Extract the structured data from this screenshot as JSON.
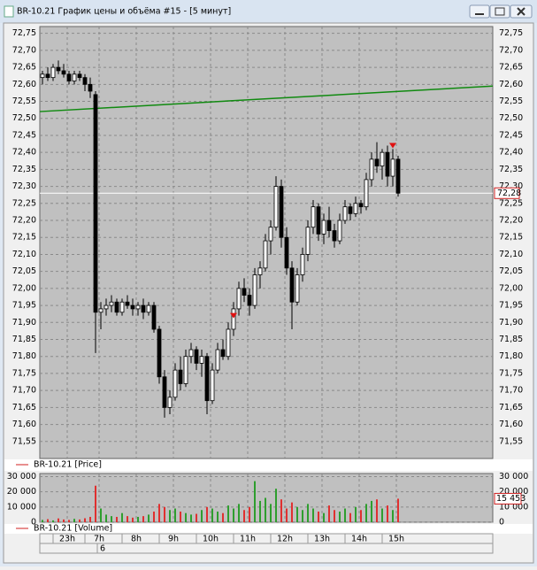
{
  "window": {
    "title": "BR-10.21 График цены и объёма #15 - [5 минут]"
  },
  "chart_data": [
    {
      "type": "candlestick",
      "legend": "BR-10.21 [Price]",
      "open": [
        72.62,
        72.63,
        72.62,
        72.65,
        72.64,
        72.63,
        72.61,
        72.63,
        72.62,
        72.6,
        72.57,
        71.93,
        71.94,
        71.95,
        71.96,
        71.93,
        71.96,
        71.95,
        71.94,
        71.95,
        71.93,
        71.95,
        71.88,
        71.74,
        71.65,
        71.68,
        71.76,
        71.72,
        71.8,
        71.82,
        71.78,
        71.8,
        71.67,
        71.76,
        71.82,
        71.8,
        71.88,
        71.94,
        72.0,
        71.98,
        71.95,
        72.04,
        72.06,
        72.14,
        72.18,
        72.3,
        72.15,
        72.06,
        71.96,
        72.04,
        72.1,
        72.18,
        72.24,
        72.16,
        72.2,
        72.17,
        72.14,
        72.2,
        72.24,
        72.22,
        72.25,
        72.24,
        72.32,
        72.38,
        72.36,
        72.4,
        72.33,
        72.38
      ],
      "high": [
        72.64,
        72.65,
        72.66,
        72.67,
        72.66,
        72.64,
        72.64,
        72.64,
        72.63,
        72.62,
        72.58,
        71.96,
        71.97,
        71.98,
        71.97,
        71.97,
        71.98,
        71.97,
        71.96,
        71.97,
        71.96,
        71.96,
        71.89,
        71.76,
        71.7,
        71.78,
        71.8,
        71.82,
        71.84,
        71.83,
        71.82,
        71.81,
        71.78,
        71.84,
        71.85,
        71.9,
        71.96,
        72.02,
        72.03,
        72.0,
        72.06,
        72.08,
        72.16,
        72.2,
        72.33,
        72.32,
        72.18,
        72.08,
        72.06,
        72.12,
        72.2,
        72.26,
        72.25,
        72.22,
        72.24,
        72.19,
        72.22,
        72.26,
        72.25,
        72.27,
        72.26,
        72.34,
        72.4,
        72.43,
        72.41,
        72.42,
        72.41,
        72.39
      ],
      "low": [
        72.6,
        72.61,
        72.61,
        72.63,
        72.62,
        72.6,
        72.6,
        72.61,
        72.58,
        72.56,
        71.81,
        71.88,
        71.92,
        71.93,
        71.92,
        71.92,
        71.94,
        71.92,
        71.92,
        71.91,
        71.92,
        71.87,
        71.72,
        71.62,
        71.63,
        71.67,
        71.7,
        71.71,
        71.78,
        71.76,
        71.74,
        71.63,
        71.66,
        71.75,
        71.79,
        71.79,
        71.86,
        71.92,
        71.96,
        71.92,
        71.94,
        72.0,
        72.05,
        72.1,
        72.17,
        72.12,
        72.04,
        71.88,
        71.95,
        72.02,
        72.08,
        72.16,
        72.14,
        72.13,
        72.15,
        72.12,
        72.13,
        72.19,
        72.2,
        72.21,
        72.22,
        72.23,
        72.3,
        72.34,
        72.32,
        72.3,
        72.3,
        72.27
      ],
      "close": [
        72.63,
        72.62,
        72.65,
        72.64,
        72.63,
        72.61,
        72.63,
        72.62,
        72.6,
        72.58,
        71.93,
        71.94,
        71.95,
        71.96,
        71.93,
        71.96,
        71.95,
        71.94,
        71.95,
        71.93,
        71.95,
        71.88,
        71.74,
        71.65,
        71.68,
        71.76,
        71.72,
        71.8,
        71.82,
        71.78,
        71.8,
        71.67,
        71.76,
        71.82,
        71.8,
        71.88,
        71.94,
        72.0,
        71.98,
        71.95,
        72.04,
        72.06,
        72.14,
        72.18,
        72.3,
        72.15,
        72.06,
        71.96,
        72.04,
        72.1,
        72.18,
        72.24,
        72.16,
        72.2,
        72.17,
        72.14,
        72.2,
        72.24,
        72.22,
        72.25,
        72.24,
        72.32,
        72.38,
        72.36,
        72.4,
        72.33,
        72.38,
        72.28
      ],
      "ylim": [
        71.5,
        72.77
      ],
      "yticks": [
        {
          "value": 71.55,
          "label": "71,55"
        },
        {
          "value": 71.6,
          "label": "71,60"
        },
        {
          "value": 71.65,
          "label": "71,65"
        },
        {
          "value": 71.7,
          "label": "71,70"
        },
        {
          "value": 71.75,
          "label": "71,75"
        },
        {
          "value": 71.8,
          "label": "71,80"
        },
        {
          "value": 71.85,
          "label": "71,85"
        },
        {
          "value": 71.9,
          "label": "71,90"
        },
        {
          "value": 71.95,
          "label": "71,95"
        },
        {
          "value": 72.0,
          "label": "72,00"
        },
        {
          "value": 72.05,
          "label": "72,05"
        },
        {
          "value": 72.1,
          "label": "72,10"
        },
        {
          "value": 72.15,
          "label": "72,15"
        },
        {
          "value": 72.2,
          "label": "72,20"
        },
        {
          "value": 72.25,
          "label": "72,25"
        },
        {
          "value": 72.3,
          "label": "72,30"
        },
        {
          "value": 72.35,
          "label": "72,35"
        },
        {
          "value": 72.4,
          "label": "72,40"
        },
        {
          "value": 72.45,
          "label": "72,45"
        },
        {
          "value": 72.5,
          "label": "72,50"
        },
        {
          "value": 72.55,
          "label": "72,55"
        },
        {
          "value": 72.6,
          "label": "72,60"
        },
        {
          "value": 72.65,
          "label": "72,65"
        },
        {
          "value": 72.7,
          "label": "72,70"
        },
        {
          "value": 72.75,
          "label": "72,75"
        }
      ],
      "last_value": {
        "value": 72.28,
        "label": "72,28"
      },
      "trend_line": [
        72.52,
        72.595
      ],
      "signals": [
        {
          "index": 36,
          "value": 71.92
        },
        {
          "index": 66,
          "value": 72.42
        }
      ],
      "grid": true
    },
    {
      "type": "bar",
      "legend": "BR-10.21 [Volume]",
      "up_color": "#2e9e2e",
      "down_color": "#e03030",
      "values": [
        1500,
        2000,
        1200,
        2500,
        1800,
        1500,
        2200,
        1800,
        2600,
        3500,
        24000,
        9000,
        5000,
        4000,
        3500,
        6000,
        4000,
        3000,
        3500,
        4000,
        5000,
        7000,
        12000,
        10000,
        8000,
        9000,
        7000,
        6000,
        5000,
        5500,
        8000,
        10000,
        9000,
        7000,
        6000,
        11000,
        9000,
        12000,
        8000,
        10000,
        27000,
        14000,
        16000,
        12000,
        22000,
        15000,
        9000,
        13000,
        10000,
        8000,
        12000,
        9000,
        7000,
        6000,
        11000,
        8000,
        7000,
        9000,
        6000,
        10000,
        8000,
        12000,
        14000,
        15000,
        9000,
        11000,
        8000,
        15453
      ],
      "ylim": [
        0,
        32000
      ],
      "yticks": [
        0,
        {
          "value": 10000,
          "label": "10 000"
        },
        {
          "value": 20000,
          "label": "20 000"
        },
        {
          "value": 30000,
          "label": "30 000"
        }
      ],
      "last_value": {
        "value": 15453,
        "label": "15 453"
      },
      "grid": true
    }
  ],
  "time_axis": {
    "labels": [
      "23h",
      "7h",
      "8h",
      "9h",
      "10h",
      "11h",
      "12h",
      "13h",
      "14h",
      "15h"
    ],
    "index": [
      5,
      11,
      18,
      25,
      32,
      39,
      46,
      53,
      60,
      67
    ],
    "date": "6",
    "date_index": 11
  }
}
